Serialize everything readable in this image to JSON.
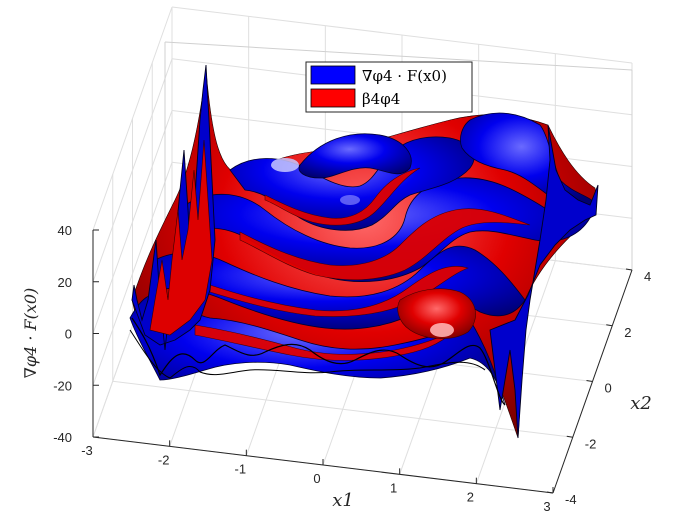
{
  "chart_data": {
    "type": "surface",
    "title": "",
    "xlabel": "x1",
    "ylabel": "x2",
    "zlabel": "∇φ4 · F(x0)",
    "xlim": [
      -3,
      3
    ],
    "ylim": [
      -4,
      4
    ],
    "zlim": [
      -40,
      40
    ],
    "x_ticks": [
      "-3",
      "-2",
      "-1",
      "0",
      "1",
      "2",
      "3"
    ],
    "y_ticks": [
      "-4",
      "-2",
      "0",
      "2",
      "4"
    ],
    "z_ticks": [
      "-40",
      "-20",
      "0",
      "20",
      "40"
    ],
    "grid": true,
    "legend_position": "top",
    "series": [
      {
        "name": "∇φ4 · F(x0)",
        "color": "#0000ff"
      },
      {
        "name": "β4φ4",
        "color": "#ff0000"
      }
    ]
  }
}
